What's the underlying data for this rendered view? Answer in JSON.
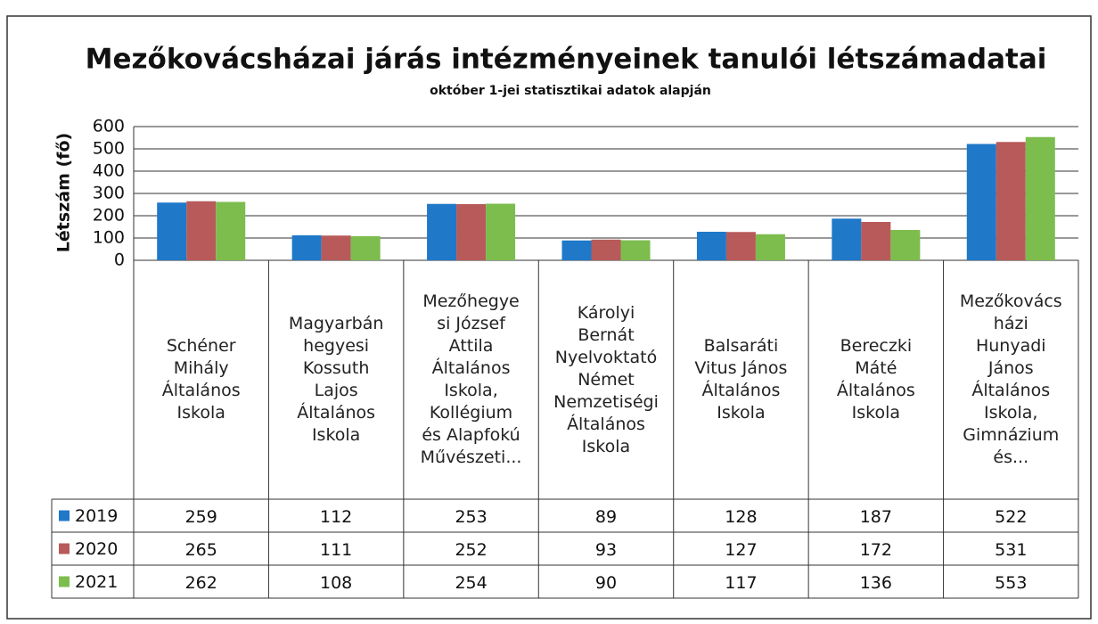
{
  "chart_data": {
    "type": "bar",
    "title": "Mezőkovácsházai járás intézményeinek tanulói létszámadatai",
    "subtitle": "október 1-jei statisztikai adatok alapján",
    "ylabel": "Létszám (fő)",
    "categories": [
      "Schéner\nMihály\nÁltalános\nIskola",
      "Magyarbán\nhegyesi\nKossuth\nLajos\nÁltalános\nIskola",
      "Mezőhegye\nsi József\nAttila\nÁltalános\nIskola,\nKollégium\nés Alapfokú\nMűvészeti...",
      "Károlyi\nBernát\nNyelvoktató\nNémet\nNemzetiségi\nÁltalános\nIskola",
      "Balsaráti\nVitus János\nÁltalános\nIskola",
      "Bereczki\nMáté\nÁltalános\nIskola",
      "Mezőkovács\nházi\nHunyadi\nJános\nÁltalános\nIskola,\nGimnázium\nés..."
    ],
    "series": [
      {
        "name": "2019",
        "color": "#1f78c8",
        "values": [
          259,
          112,
          253,
          89,
          128,
          187,
          522
        ]
      },
      {
        "name": "2020",
        "color": "#b85a5a",
        "values": [
          265,
          111,
          252,
          93,
          127,
          172,
          531
        ]
      },
      {
        "name": "2021",
        "color": "#7cbd4e",
        "values": [
          262,
          108,
          254,
          90,
          117,
          136,
          553
        ]
      }
    ],
    "ylim": [
      0,
      600
    ],
    "yticks": [
      0,
      100,
      200,
      300,
      400,
      500,
      600
    ],
    "grid": true
  }
}
